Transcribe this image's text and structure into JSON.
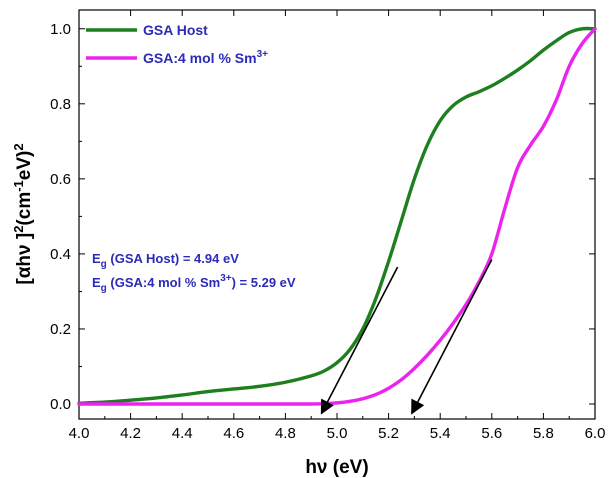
{
  "chart_data": {
    "type": "line",
    "xlabel_main": "hν",
    "xlabel_unit": " (eV)",
    "ylabel": {
      "pre": "[αhν ]",
      "sq": "2",
      "mid": "(cm",
      "exp": "-1",
      "post": "eV)",
      "sq2": "2"
    },
    "xlim": [
      4.0,
      6.0
    ],
    "ylim": [
      -0.04,
      1.05
    ],
    "xticks": [
      4.0,
      4.2,
      4.4,
      4.6,
      4.8,
      5.0,
      5.2,
      5.4,
      5.6,
      5.8,
      6.0
    ],
    "xtick_labels": [
      "4.0",
      "4.2",
      "4.4",
      "4.6",
      "4.8",
      "5.0",
      "5.2",
      "5.4",
      "5.6",
      "5.8",
      "6.0"
    ],
    "yticks": [
      0.0,
      0.2,
      0.4,
      0.6,
      0.8,
      1.0
    ],
    "ytick_labels": [
      "0.0",
      "0.2",
      "0.4",
      "0.6",
      "0.8",
      "1.0"
    ],
    "legend_position": "top-left",
    "series": [
      {
        "name": "GSA Host",
        "name_parts": {
          "base": "GSA Host",
          "sup": ""
        },
        "color": "#1e7f1e",
        "x": [
          4.0,
          4.1,
          4.2,
          4.3,
          4.4,
          4.5,
          4.6,
          4.7,
          4.8,
          4.9,
          4.95,
          5.0,
          5.05,
          5.1,
          5.15,
          5.2,
          5.25,
          5.3,
          5.35,
          5.4,
          5.45,
          5.5,
          5.55,
          5.6,
          5.65,
          5.7,
          5.75,
          5.8,
          5.85,
          5.9,
          5.95,
          6.0
        ],
        "y": [
          0.002,
          0.005,
          0.01,
          0.016,
          0.024,
          0.033,
          0.04,
          0.047,
          0.058,
          0.075,
          0.088,
          0.11,
          0.145,
          0.2,
          0.28,
          0.38,
          0.49,
          0.6,
          0.69,
          0.755,
          0.795,
          0.818,
          0.832,
          0.848,
          0.868,
          0.89,
          0.915,
          0.943,
          0.968,
          0.99,
          1.0,
          1.0
        ]
      },
      {
        "name": "GSA:4 mol % Sm3+",
        "name_parts": {
          "base": "GSA:4 mol % Sm",
          "sup": "3+"
        },
        "color": "#ee22ee",
        "x": [
          4.0,
          4.5,
          4.9,
          5.0,
          5.05,
          5.1,
          5.15,
          5.2,
          5.25,
          5.3,
          5.35,
          5.4,
          5.45,
          5.5,
          5.55,
          5.6,
          5.65,
          5.7,
          5.75,
          5.8,
          5.85,
          5.9,
          5.95,
          6.0
        ],
        "y": [
          0.0,
          0.0,
          0.0,
          0.003,
          0.007,
          0.014,
          0.025,
          0.042,
          0.065,
          0.095,
          0.13,
          0.17,
          0.215,
          0.265,
          0.325,
          0.4,
          0.52,
          0.63,
          0.69,
          0.74,
          0.81,
          0.9,
          0.96,
          1.0
        ]
      }
    ],
    "annotations": [
      {
        "label": "E",
        "sub": "g",
        "rest": " (GSA Host) = 4.94 eV",
        "sup": "",
        "tail": ""
      },
      {
        "label": "E",
        "sub": "g",
        "rest": " (GSA:4 mol % Sm",
        "sup": "3+",
        "tail": ") = 5.29 eV"
      }
    ],
    "tangent_lines": [
      {
        "from": [
          5.235,
          0.365
        ],
        "to": [
          4.94,
          -0.025
        ]
      },
      {
        "from": [
          5.6,
          0.385
        ],
        "to": [
          5.29,
          -0.025
        ]
      }
    ]
  }
}
